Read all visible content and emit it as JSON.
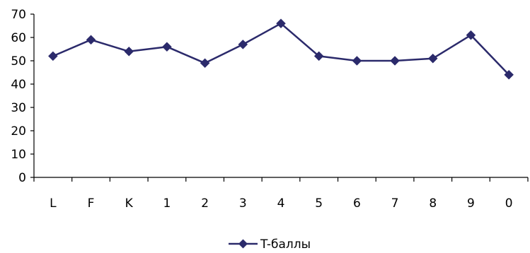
{
  "chart_data": {
    "type": "line",
    "categories": [
      "L",
      "F",
      "K",
      "1",
      "2",
      "3",
      "4",
      "5",
      "6",
      "7",
      "8",
      "9",
      "0"
    ],
    "series": [
      {
        "name": "T-баллы",
        "values": [
          52,
          59,
          54,
          56,
          49,
          57,
          66,
          52,
          50,
          50,
          51,
          61,
          44
        ]
      }
    ],
    "yticks": [
      "0",
      "10",
      "20",
      "30",
      "40",
      "50",
      "60",
      "70"
    ],
    "ylim": [
      0,
      70
    ],
    "grid": false,
    "legend": "bottom-center",
    "colors": {
      "line": "#2b2a6b",
      "marker": "#2b2a6b",
      "axis": "#000000"
    }
  }
}
